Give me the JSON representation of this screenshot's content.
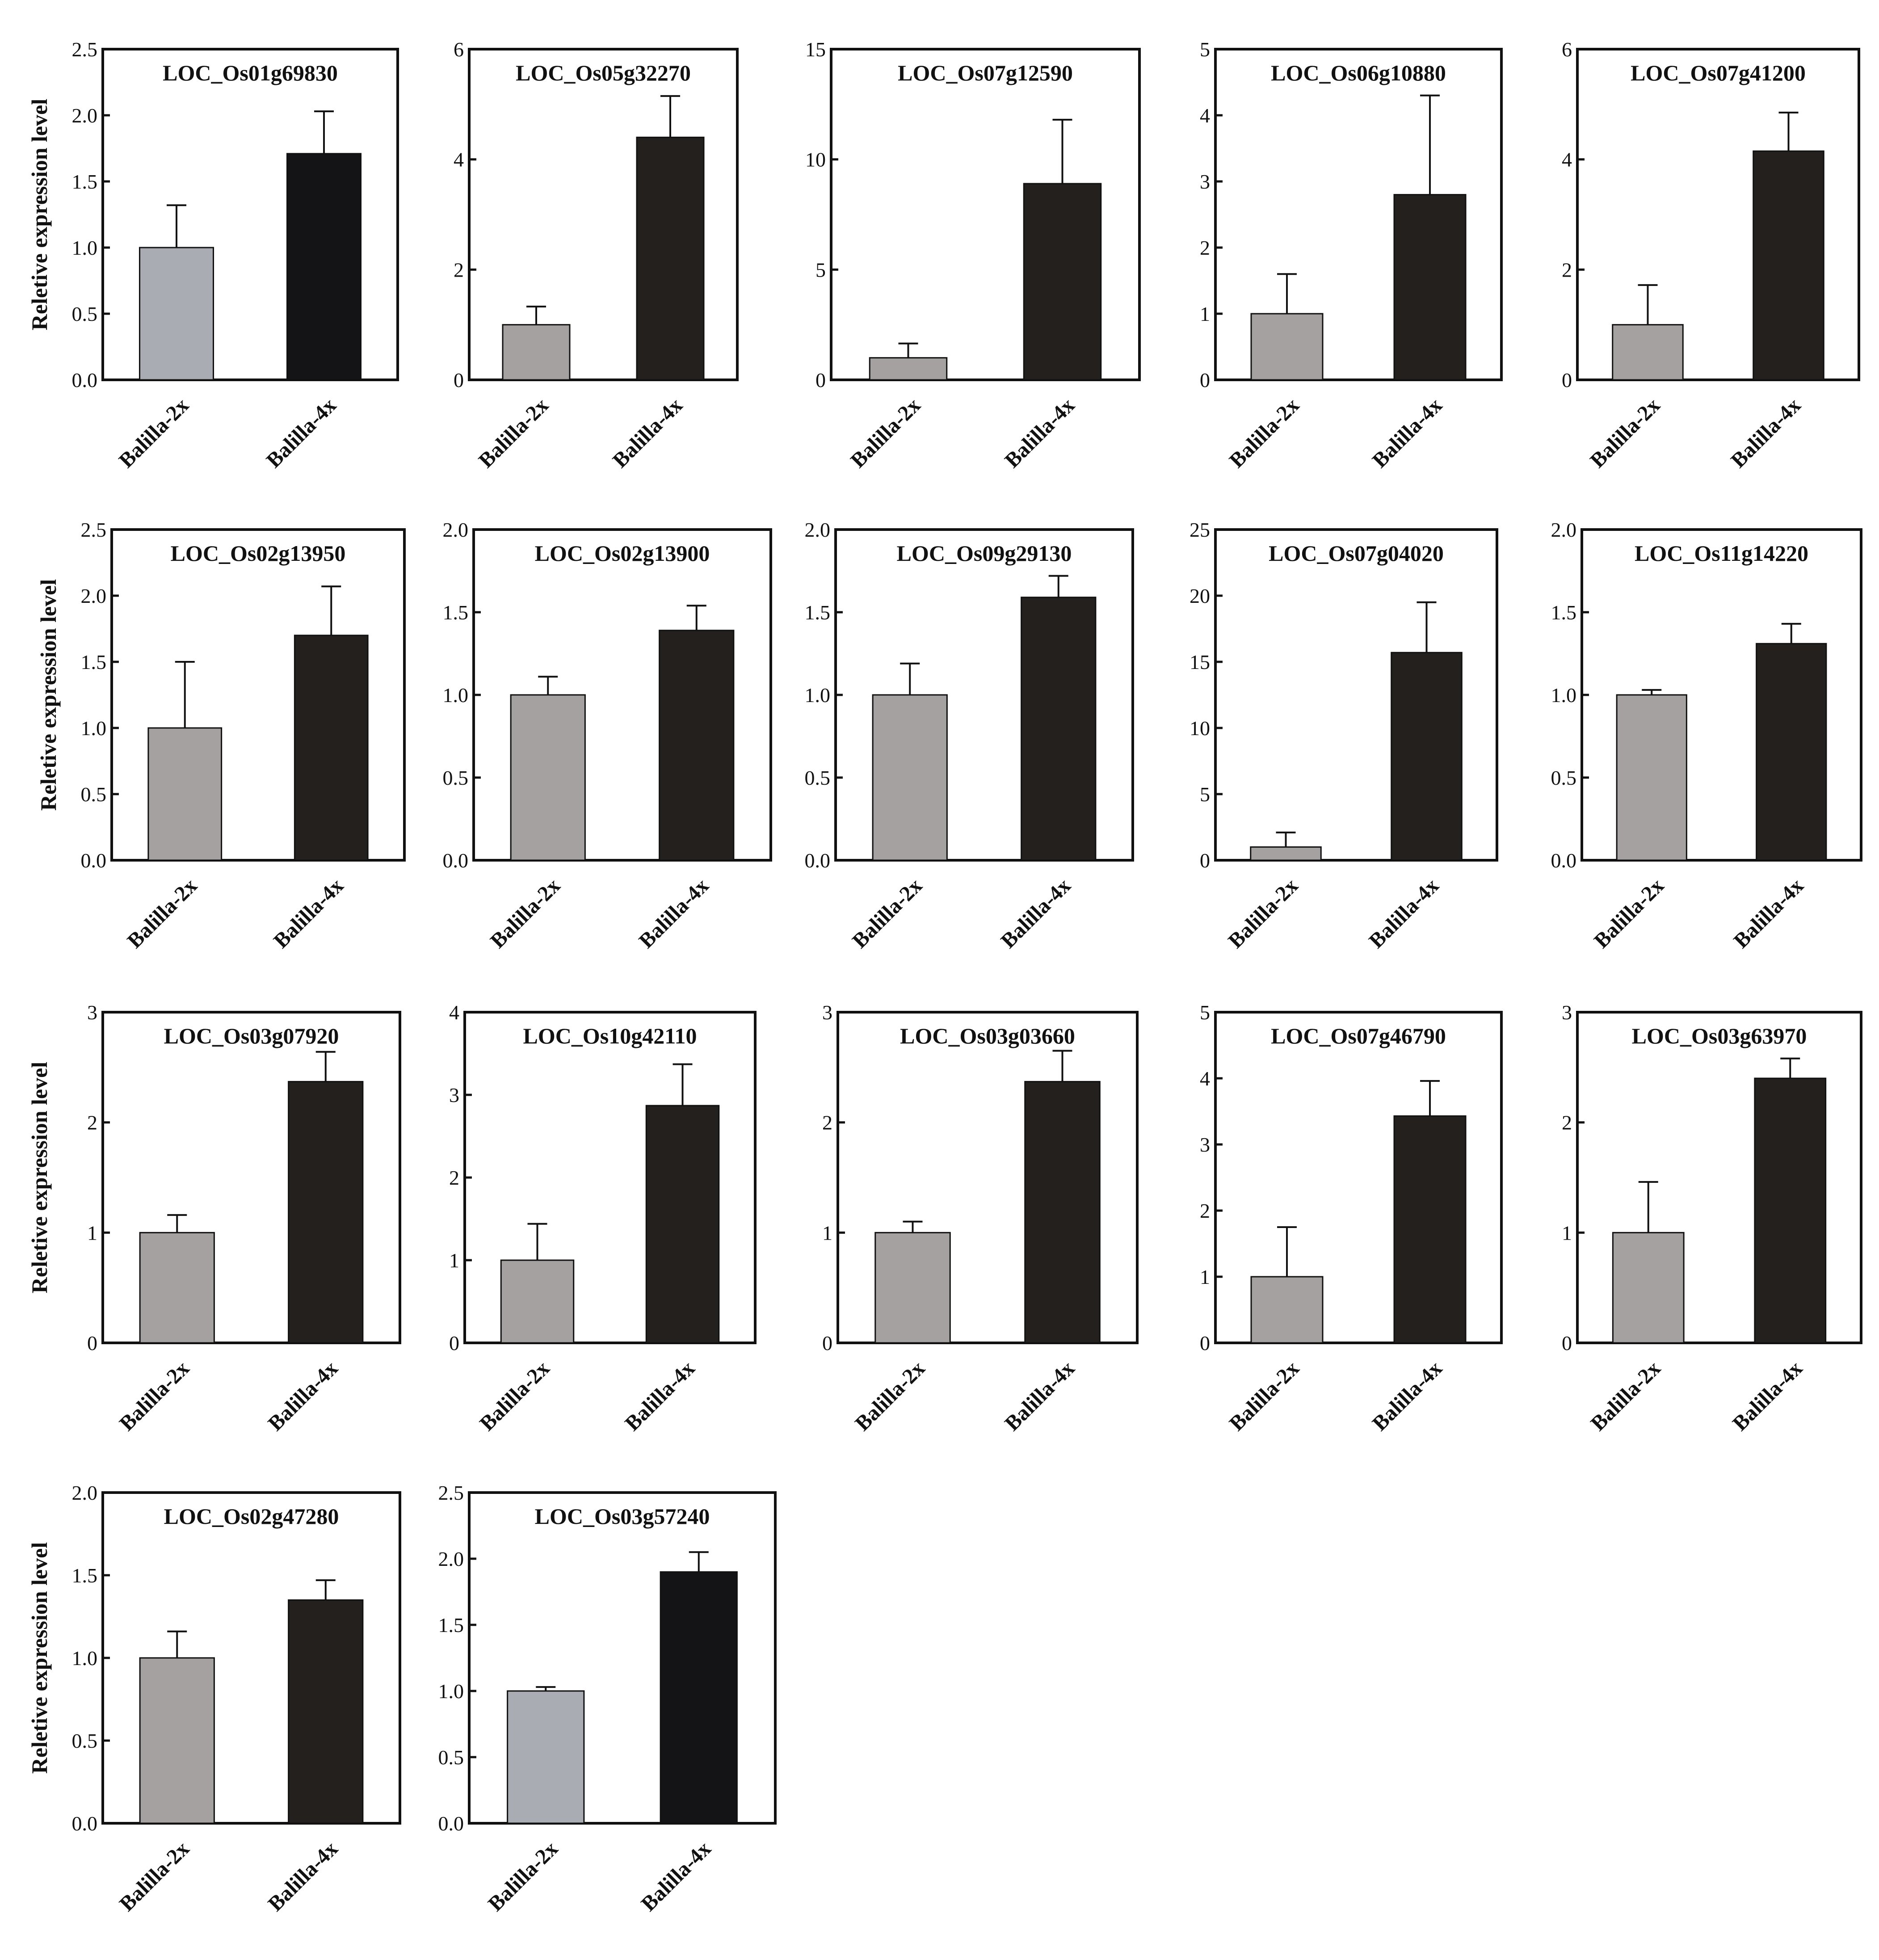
{
  "page": {
    "background": "#ffffff"
  },
  "chart_data": [
    {
      "type": "bar",
      "title": "LOC_Os01g69830",
      "ylabel": "Reletive expression level",
      "categories": [
        "Balilla-2x",
        "Balilla-4x"
      ],
      "values": [
        1.0,
        1.71
      ],
      "errors": [
        0.32,
        0.32
      ],
      "ylim": [
        0,
        2.5
      ],
      "yticks": [
        "0.0",
        "0.5",
        "1.0",
        "1.5",
        "2.0",
        "2.5"
      ],
      "colors": [
        "#a9acb2",
        "#141416"
      ]
    },
    {
      "type": "bar",
      "title": "LOC_Os05g32270",
      "ylabel": "",
      "categories": [
        "Balilla-2x",
        "Balilla-4x"
      ],
      "values": [
        1.0,
        4.4
      ],
      "errors": [
        0.33,
        0.75
      ],
      "ylim": [
        0,
        6
      ],
      "yticks": [
        "0",
        "2",
        "4",
        "6"
      ],
      "colors": [
        "#a6a1a1",
        "#23201e"
      ]
    },
    {
      "type": "bar",
      "title": "LOC_Os07g12590",
      "ylabel": "",
      "categories": [
        "Balilla-2x",
        "Balilla-4x"
      ],
      "values": [
        1.0,
        8.9
      ],
      "errors": [
        0.65,
        2.9
      ],
      "ylim": [
        0,
        15
      ],
      "yticks": [
        "0",
        "5",
        "10",
        "15"
      ],
      "colors": [
        "#a6a1a1",
        "#23201e"
      ]
    },
    {
      "type": "bar",
      "title": "LOC_Os06g10880",
      "ylabel": "",
      "categories": [
        "Balilla-2x",
        "Balilla-4x"
      ],
      "values": [
        1.0,
        2.8
      ],
      "errors": [
        0.6,
        1.5
      ],
      "ylim": [
        0,
        5
      ],
      "yticks": [
        "0",
        "1",
        "2",
        "3",
        "4",
        "5"
      ],
      "colors": [
        "#a6a1a1",
        "#23201e"
      ]
    },
    {
      "type": "bar",
      "title": "LOC_Os07g41200",
      "ylabel": "",
      "categories": [
        "Balilla-2x",
        "Balilla-4x"
      ],
      "values": [
        1.0,
        4.15
      ],
      "errors": [
        0.72,
        0.7
      ],
      "ylim": [
        0,
        6
      ],
      "yticks": [
        "0",
        "2",
        "4",
        "6"
      ],
      "colors": [
        "#a6a1a1",
        "#23201e"
      ]
    },
    {
      "type": "bar",
      "title": "LOC_Os02g13950",
      "ylabel": "Reletive expression level",
      "categories": [
        "Balilla-2x",
        "Balilla-4x"
      ],
      "values": [
        1.0,
        1.7
      ],
      "errors": [
        0.5,
        0.37
      ],
      "ylim": [
        0,
        2.5
      ],
      "yticks": [
        "0.0",
        "0.5",
        "1.0",
        "1.5",
        "2.0",
        "2.5"
      ],
      "colors": [
        "#a6a1a1",
        "#23201e"
      ]
    },
    {
      "type": "bar",
      "title": "LOC_Os02g13900",
      "ylabel": "",
      "categories": [
        "Balilla-2x",
        "Balilla-4x"
      ],
      "values": [
        1.0,
        1.39
      ],
      "errors": [
        0.11,
        0.15
      ],
      "ylim": [
        0,
        2.0
      ],
      "yticks": [
        "0.0",
        "0.5",
        "1.0",
        "1.5",
        "2.0"
      ],
      "colors": [
        "#a6a1a1",
        "#23201e"
      ]
    },
    {
      "type": "bar",
      "title": "LOC_Os09g29130",
      "ylabel": "",
      "categories": [
        "Balilla-2x",
        "Balilla-4x"
      ],
      "values": [
        1.0,
        1.59
      ],
      "errors": [
        0.19,
        0.13
      ],
      "ylim": [
        0,
        2.0
      ],
      "yticks": [
        "0.0",
        "0.5",
        "1.0",
        "1.5",
        "2.0"
      ],
      "colors": [
        "#a6a1a1",
        "#23201e"
      ]
    },
    {
      "type": "bar",
      "title": "LOC_Os07g04020",
      "ylabel": "",
      "categories": [
        "Balilla-2x",
        "Balilla-4x"
      ],
      "values": [
        1.0,
        15.7
      ],
      "errors": [
        1.1,
        3.8
      ],
      "ylim": [
        0,
        25
      ],
      "yticks": [
        "0",
        "5",
        "10",
        "15",
        "20",
        "25"
      ],
      "colors": [
        "#a6a1a1",
        "#23201e"
      ]
    },
    {
      "type": "bar",
      "title": "LOC_Os11g14220",
      "ylabel": "",
      "categories": [
        "Balilla-2x",
        "Balilla-4x"
      ],
      "values": [
        1.0,
        1.31
      ],
      "errors": [
        0.03,
        0.12
      ],
      "ylim": [
        0,
        2.0
      ],
      "yticks": [
        "0.0",
        "0.5",
        "1.0",
        "1.5",
        "2.0"
      ],
      "colors": [
        "#a6a1a1",
        "#23201e"
      ]
    },
    {
      "type": "bar",
      "title": "LOC_Os03g07920",
      "ylabel": "Reletive expression level",
      "categories": [
        "Balilla-2x",
        "Balilla-4x"
      ],
      "values": [
        1.0,
        2.37
      ],
      "errors": [
        0.16,
        0.27
      ],
      "ylim": [
        0,
        3
      ],
      "yticks": [
        "0",
        "1",
        "2",
        "3"
      ],
      "colors": [
        "#a6a1a1",
        "#23201e"
      ]
    },
    {
      "type": "bar",
      "title": "LOC_Os10g42110",
      "ylabel": "",
      "categories": [
        "Balilla-2x",
        "Balilla-4x"
      ],
      "values": [
        1.0,
        2.87
      ],
      "errors": [
        0.44,
        0.5
      ],
      "ylim": [
        0,
        4
      ],
      "yticks": [
        "0",
        "1",
        "2",
        "3",
        "4"
      ],
      "colors": [
        "#a6a1a1",
        "#23201e"
      ]
    },
    {
      "type": "bar",
      "title": "LOC_Os03g03660",
      "ylabel": "",
      "categories": [
        "Balilla-2x",
        "Balilla-4x"
      ],
      "values": [
        1.0,
        2.37
      ],
      "errors": [
        0.1,
        0.28
      ],
      "ylim": [
        0,
        3
      ],
      "yticks": [
        "0",
        "1",
        "2",
        "3"
      ],
      "colors": [
        "#a6a1a1",
        "#23201e"
      ]
    },
    {
      "type": "bar",
      "title": "LOC_Os07g46790",
      "ylabel": "",
      "categories": [
        "Balilla-2x",
        "Balilla-4x"
      ],
      "values": [
        1.0,
        3.43
      ],
      "errors": [
        0.75,
        0.53
      ],
      "ylim": [
        0,
        5
      ],
      "yticks": [
        "0",
        "1",
        "2",
        "3",
        "4",
        "5"
      ],
      "colors": [
        "#a6a1a1",
        "#23201e"
      ]
    },
    {
      "type": "bar",
      "title": "LOC_Os03g63970",
      "ylabel": "",
      "categories": [
        "Balilla-2x",
        "Balilla-4x"
      ],
      "values": [
        1.0,
        2.4
      ],
      "errors": [
        0.46,
        0.18
      ],
      "ylim": [
        0,
        3
      ],
      "yticks": [
        "0",
        "1",
        "2",
        "3"
      ],
      "colors": [
        "#a6a1a1",
        "#23201e"
      ]
    },
    {
      "type": "bar",
      "title": "LOC_Os02g47280",
      "ylabel": "Reletive expression level",
      "categories": [
        "Balilla-2x",
        "Balilla-4x"
      ],
      "values": [
        1.0,
        1.35
      ],
      "errors": [
        0.16,
        0.12
      ],
      "ylim": [
        0,
        2.0
      ],
      "yticks": [
        "0.0",
        "0.5",
        "1.0",
        "1.5",
        "2.0"
      ],
      "colors": [
        "#a6a1a1",
        "#23201e"
      ]
    },
    {
      "type": "bar",
      "title": "LOC_Os03g57240",
      "ylabel": "",
      "categories": [
        "Balilla-2x",
        "Balilla-4x"
      ],
      "values": [
        1.0,
        1.9
      ],
      "errors": [
        0.03,
        0.15
      ],
      "ylim": [
        0,
        2.5
      ],
      "yticks": [
        "0.0",
        "0.5",
        "1.0",
        "1.5",
        "2.0",
        "2.5"
      ],
      "colors": [
        "#a9acb2",
        "#141416"
      ]
    }
  ]
}
